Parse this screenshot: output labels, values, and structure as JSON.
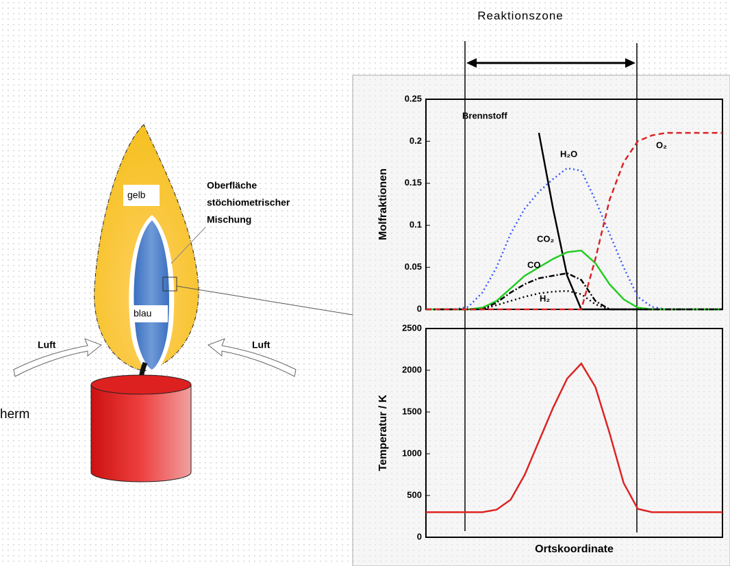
{
  "diagram": {
    "title": "Reaktionszone",
    "labels": {
      "yellow": "gelb",
      "blue": "blau",
      "surface": [
        "Oberfläche",
        "stöchiometrischer",
        "Mischung"
      ],
      "air_left": "Luft",
      "air_right": "Luft",
      "cut_text": "herm"
    }
  },
  "chart_data": [
    {
      "type": "line",
      "ylabel": "Molfraktionen",
      "categories": [
        null,
        null,
        null,
        null,
        null,
        null,
        null,
        null,
        null,
        null,
        null,
        null,
        null,
        null,
        null,
        null,
        null,
        null,
        null,
        null,
        null,
        null
      ],
      "ylim": [
        0,
        0.25
      ],
      "yticks": [
        0,
        0.05,
        0.1,
        0.15,
        0.2,
        0.25
      ],
      "series": [
        {
          "name": "Brennstoff",
          "color": "#000000",
          "line_style": "solid",
          "values": [
            null,
            null,
            null,
            null,
            null,
            null,
            null,
            null,
            0.21,
            0.12,
            0.04,
            0,
            0,
            0,
            0,
            0,
            0,
            0,
            0,
            0,
            0,
            0
          ]
        },
        {
          "name": "H₂O",
          "color": "#3355ff",
          "line_style": "dotted",
          "values": [
            0,
            0,
            0,
            0.003,
            0.02,
            0.05,
            0.09,
            0.12,
            0.14,
            0.155,
            0.168,
            0.165,
            0.13,
            0.09,
            0.05,
            0.015,
            0.003,
            0,
            0,
            0,
            0,
            0
          ]
        },
        {
          "name": "CO₂",
          "color": "#22cc22",
          "line_style": "solid",
          "values": [
            0,
            0,
            0,
            0,
            0.002,
            0.01,
            0.025,
            0.04,
            0.05,
            0.06,
            0.068,
            0.07,
            0.055,
            0.03,
            0.012,
            0.002,
            0,
            0,
            0,
            0,
            0,
            0
          ]
        },
        {
          "name": "CO",
          "color": "#000000",
          "line_style": "dashdot",
          "values": [
            0,
            0,
            0,
            0,
            0,
            0.008,
            0.02,
            0.03,
            0.037,
            0.04,
            0.043,
            0.035,
            0.01,
            0,
            0,
            0,
            0,
            0,
            0,
            0,
            0,
            0
          ]
        },
        {
          "name": "H₂",
          "color": "#000000",
          "line_style": "dotted",
          "values": [
            0,
            0,
            0,
            0,
            0,
            0.005,
            0.01,
            0.015,
            0.019,
            0.021,
            0.022,
            0.018,
            0.006,
            0,
            0,
            0,
            0,
            0,
            0,
            0,
            0,
            0
          ]
        },
        {
          "name": "O₂",
          "color": "#dd2222",
          "line_style": "dashed",
          "values": [
            0,
            0,
            0,
            0,
            0,
            0,
            0,
            0,
            0,
            0,
            0,
            0,
            0.06,
            0.13,
            0.175,
            0.2,
            0.207,
            0.21,
            0.21,
            0.21,
            0.21,
            0.21
          ]
        }
      ]
    },
    {
      "type": "line",
      "ylabel": "Temperatur / K",
      "xlabel": "Ortskoordinate",
      "categories": [
        null,
        null,
        null,
        null,
        null,
        null,
        null,
        null,
        null,
        null,
        null,
        null,
        null,
        null,
        null,
        null,
        null,
        null,
        null,
        null,
        null,
        null
      ],
      "ylim": [
        0,
        2500
      ],
      "yticks": [
        0,
        500,
        1000,
        1500,
        2000,
        2500
      ],
      "series": [
        {
          "color": "#dd2222",
          "line_style": "solid",
          "values": [
            300,
            300,
            300,
            300,
            300,
            330,
            450,
            750,
            1150,
            1550,
            1900,
            2080,
            1800,
            1250,
            650,
            340,
            300,
            300,
            300,
            300,
            300,
            300
          ]
        }
      ]
    }
  ]
}
